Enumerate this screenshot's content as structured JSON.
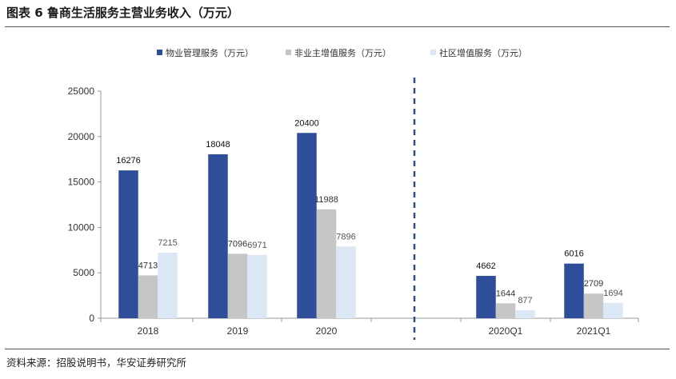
{
  "figure": {
    "title": "图表 6 鲁商生活服务主营业务收入（万元）",
    "source": "资料来源：招股说明书，华安证券研究所"
  },
  "chart_data": {
    "type": "bar",
    "title": "鲁商生活服务主营业务收入（万元）",
    "xlabel": "",
    "ylabel": "",
    "ylim": [
      0,
      25000
    ],
    "yticks": [
      0,
      5000,
      10000,
      15000,
      20000,
      25000
    ],
    "grid": false,
    "legend_position": "top-center",
    "categories": [
      "2018",
      "2019",
      "2020",
      "2020Q1",
      "2021Q1"
    ],
    "divider_after_category": "2020",
    "series": [
      {
        "name": "物业管理服务（万元）",
        "color": "#2e4e9a",
        "values": [
          16276,
          18048,
          20400,
          4662,
          6016
        ]
      },
      {
        "name": "非业主增值服务（万元）",
        "color": "#c6c6c6",
        "values": [
          4713,
          7096,
          11988,
          1644,
          2709
        ]
      },
      {
        "name": "社区增值服务（万元）",
        "color": "#dbe7f5",
        "values": [
          7215,
          6971,
          7896,
          877,
          1694
        ]
      }
    ]
  }
}
